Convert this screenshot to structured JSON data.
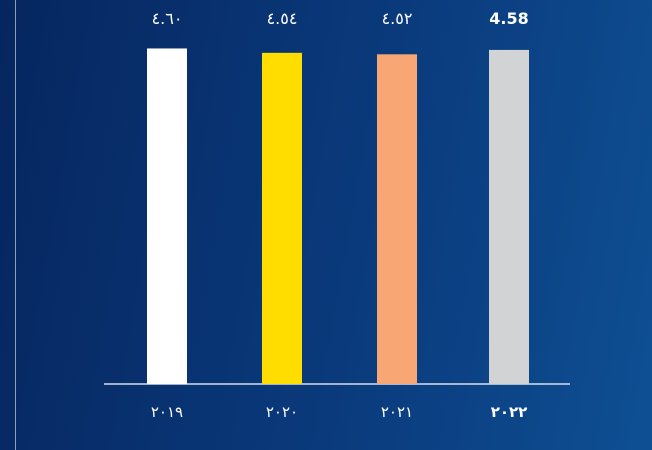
{
  "chart_data": {
    "type": "bar",
    "categories": [
      "٢٠١٩",
      "٢٠٢٠",
      "٢٠٢١",
      "٢٠٢٢"
    ],
    "values": [
      4.6,
      4.54,
      4.52,
      4.58
    ],
    "value_labels": [
      "٤.٦٠",
      "٤.٥٤",
      "٤.٥٢",
      "4.58"
    ],
    "colors": [
      "#ffffff",
      "#ffdd00",
      "#f8a674",
      "#d2d3d5"
    ],
    "ylim": [
      0,
      4.62
    ],
    "grid": false,
    "title": "",
    "xlabel": "",
    "ylabel": ""
  }
}
